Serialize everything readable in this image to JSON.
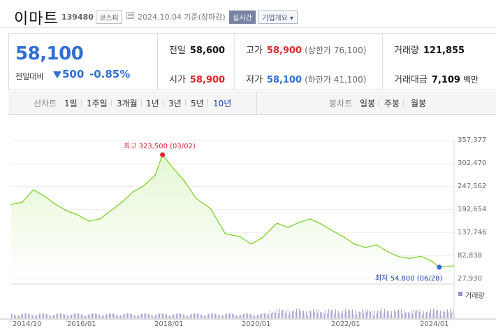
{
  "header": {
    "stock_name": "이마트",
    "stock_code": "139480",
    "market": "코스피",
    "date_text": "2024.10.04  기준(장마감)",
    "realtime_label": "실시간",
    "company_label": "기업개요 ▾"
  },
  "price": {
    "current": "58,100",
    "change_label": "전일대비",
    "change_value": "500",
    "change_pct": "-0.85%"
  },
  "stats": {
    "prev_close": {
      "label": "전일",
      "value": "58,600"
    },
    "open": {
      "label": "시가",
      "value": "58,900"
    },
    "high": {
      "label": "고가",
      "value": "58,900",
      "sub": "(상한가 76,100)"
    },
    "low": {
      "label": "저가",
      "value": "58,100",
      "sub": "(하한가 41,100)"
    },
    "volume": {
      "label": "거래량",
      "value": "121,855"
    },
    "amount": {
      "label": "거래대금",
      "value": "7,109",
      "unit": "백만"
    }
  },
  "tabs": {
    "line_label": "선차트",
    "line_items": [
      "1일",
      "1주일",
      "3개월",
      "1년",
      "3년",
      "5년",
      "10년"
    ],
    "active_index": 6,
    "candle_label": "봉차트",
    "candle_items": [
      "일봉",
      "주봉",
      "월봉"
    ]
  },
  "colors": {
    "price_down": "#2f6fd5",
    "price_up": "#e0252b",
    "chart_line": "#7ed32a",
    "chart_fill": "#e4f7d3",
    "volume_bar": "#9b8bc6"
  },
  "chart_data": {
    "type": "area",
    "y_ticks": [
      "357,377",
      "302,470",
      "247,562",
      "192,654",
      "137,746",
      "82,838",
      "27,930"
    ],
    "ylim": [
      27930,
      357377
    ],
    "x_ticks": [
      "2014/10",
      "2016/01",
      "2018/01",
      "2020/01",
      "2022/01",
      "2024/01"
    ],
    "high_label": "최고 323,500 (03/02)",
    "low_label": "최저 54,800 (06/28)",
    "volume_label": "거래량",
    "series": [
      {
        "x": [
          "2014/10",
          "2015/01",
          "2015/04",
          "2015/07",
          "2015/10",
          "2016/01",
          "2016/04",
          "2016/07",
          "2016/10",
          "2017/01",
          "2017/04",
          "2017/07",
          "2017/10",
          "2018/01",
          "2018/03",
          "2018/06",
          "2018/09",
          "2018/12",
          "2019/04",
          "2019/08",
          "2019/12",
          "2020/03",
          "2020/06",
          "2020/10",
          "2021/01",
          "2021/04",
          "2021/07",
          "2021/10",
          "2022/01",
          "2022/04",
          "2022/07",
          "2022/10",
          "2023/01",
          "2023/04",
          "2023/07",
          "2023/10",
          "2024/01",
          "2024/04",
          "2024/06",
          "2024/10"
        ],
        "values": [
          205000,
          210000,
          240000,
          225000,
          205000,
          190000,
          180000,
          165000,
          170000,
          190000,
          210000,
          235000,
          250000,
          275000,
          323500,
          290000,
          260000,
          220000,
          195000,
          135000,
          128000,
          110000,
          125000,
          160000,
          150000,
          162000,
          170000,
          158000,
          142000,
          128000,
          110000,
          102000,
          108000,
          92000,
          80000,
          76000,
          81000,
          69000,
          54800,
          58100
        ]
      }
    ]
  }
}
